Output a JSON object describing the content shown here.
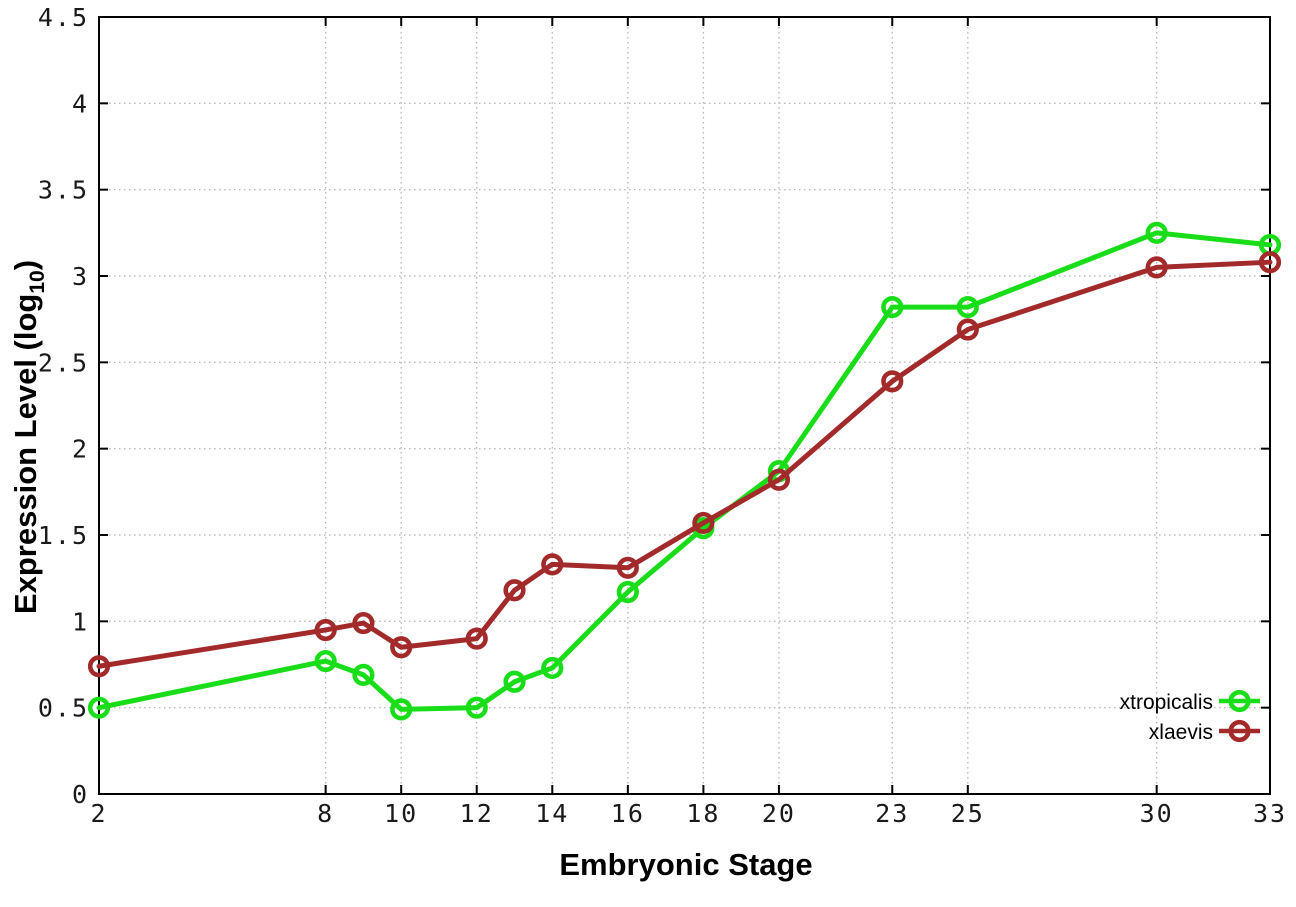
{
  "chart_data": {
    "type": "line",
    "title": "",
    "xlabel": "Embryonic Stage",
    "ylabel": "Expression Level (log10)",
    "ylabel_parts": {
      "prefix": "Expression Level (log",
      "sub": "10",
      "suffix": ")"
    },
    "x": [
      2,
      8,
      9,
      10,
      12,
      13,
      14,
      16,
      18,
      20,
      23,
      25,
      30,
      33
    ],
    "x_ticks": [
      2,
      8,
      10,
      12,
      14,
      16,
      18,
      20,
      23,
      25,
      30,
      33
    ],
    "y_ticks": [
      0,
      0.5,
      1,
      1.5,
      2,
      2.5,
      3,
      3.5,
      4,
      4.5
    ],
    "xlim": [
      2,
      33
    ],
    "ylim": [
      0,
      4.5
    ],
    "grid": true,
    "marker": "open-circle",
    "legend_position": "bottom-right",
    "series": [
      {
        "name": "xtropicalis",
        "color": "#19dd19",
        "values": [
          0.5,
          0.77,
          0.69,
          0.49,
          0.5,
          0.65,
          0.73,
          1.17,
          1.54,
          1.87,
          2.82,
          2.82,
          3.25,
          3.18
        ]
      },
      {
        "name": "xlaevis",
        "color": "#a32a2a",
        "values": [
          0.74,
          0.95,
          0.99,
          0.85,
          0.9,
          1.18,
          1.33,
          1.31,
          1.57,
          1.82,
          2.39,
          2.69,
          3.05,
          3.08
        ]
      }
    ],
    "style": {
      "background": "#ffffff",
      "grid_color": "#bdbdbd",
      "axis_color": "#000000",
      "text_color": "#1a1a1a"
    }
  }
}
